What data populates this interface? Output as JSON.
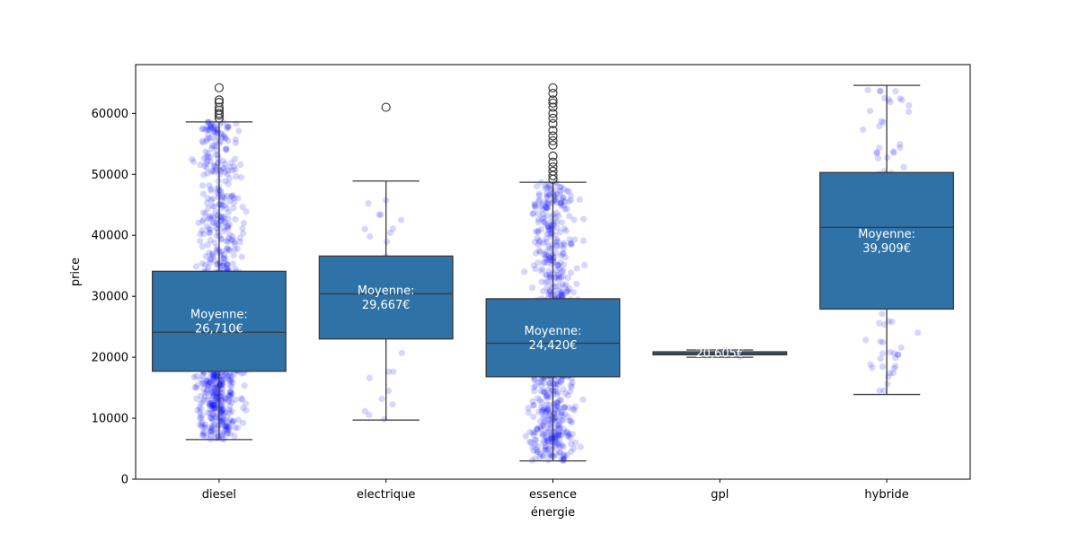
{
  "chart_data": {
    "type": "box",
    "xlabel": "énergie",
    "ylabel": "price",
    "ylim": [
      0,
      68000
    ],
    "yticks": [
      0,
      10000,
      20000,
      30000,
      40000,
      50000,
      60000
    ],
    "ytick_labels": [
      "0",
      "10000",
      "20000",
      "30000",
      "40000",
      "50000",
      "60000"
    ],
    "categories": [
      "diesel",
      "electrique",
      "essence",
      "gpl",
      "hybride"
    ],
    "colors": {
      "box": "#2e72a8",
      "points": "#0000ff",
      "line": "#3a3a3a",
      "mean_text": "#ffffff"
    },
    "grid": false,
    "boxes": [
      {
        "category": "diesel",
        "whisker_low": 6500,
        "q1": 17700,
        "median": 24100,
        "q3": 34100,
        "whisker_high": 58600,
        "outliers": [
          59200,
          59700,
          60000,
          60500,
          61000,
          61800,
          62200,
          64200
        ],
        "mean_label": "Moyenne:\n26,710€"
      },
      {
        "category": "electrique",
        "whisker_low": 9700,
        "q1": 23000,
        "median": 30400,
        "q3": 36600,
        "whisker_high": 48900,
        "outliers": [
          61000
        ],
        "mean_label": "Moyenne:\n29,667€"
      },
      {
        "category": "essence",
        "whisker_low": 3000,
        "q1": 16800,
        "median": 22300,
        "q3": 29600,
        "whisker_high": 48700,
        "outliers": [
          49200,
          49800,
          50500,
          51200,
          52000,
          53000,
          54800,
          55500,
          56300,
          57200,
          58300,
          59200,
          60000,
          61000,
          61700,
          62200,
          63300,
          64200
        ],
        "mean_label": "Moyenne:\n24,420€"
      },
      {
        "category": "gpl",
        "whisker_low": 20000,
        "q1": 20400,
        "median": 20600,
        "q3": 20900,
        "whisker_high": 21200,
        "outliers": [],
        "mean_label": "20,605€"
      },
      {
        "category": "hybride",
        "whisker_low": 13900,
        "q1": 27900,
        "median": 41300,
        "q3": 50300,
        "whisker_high": 64600,
        "outliers": [],
        "mean_label": "Moyenne:\n39,909€"
      }
    ],
    "strip_point_counts": {
      "diesel": 1100,
      "electrique": 40,
      "essence": 1000,
      "gpl": 4,
      "hybride": 110
    }
  }
}
